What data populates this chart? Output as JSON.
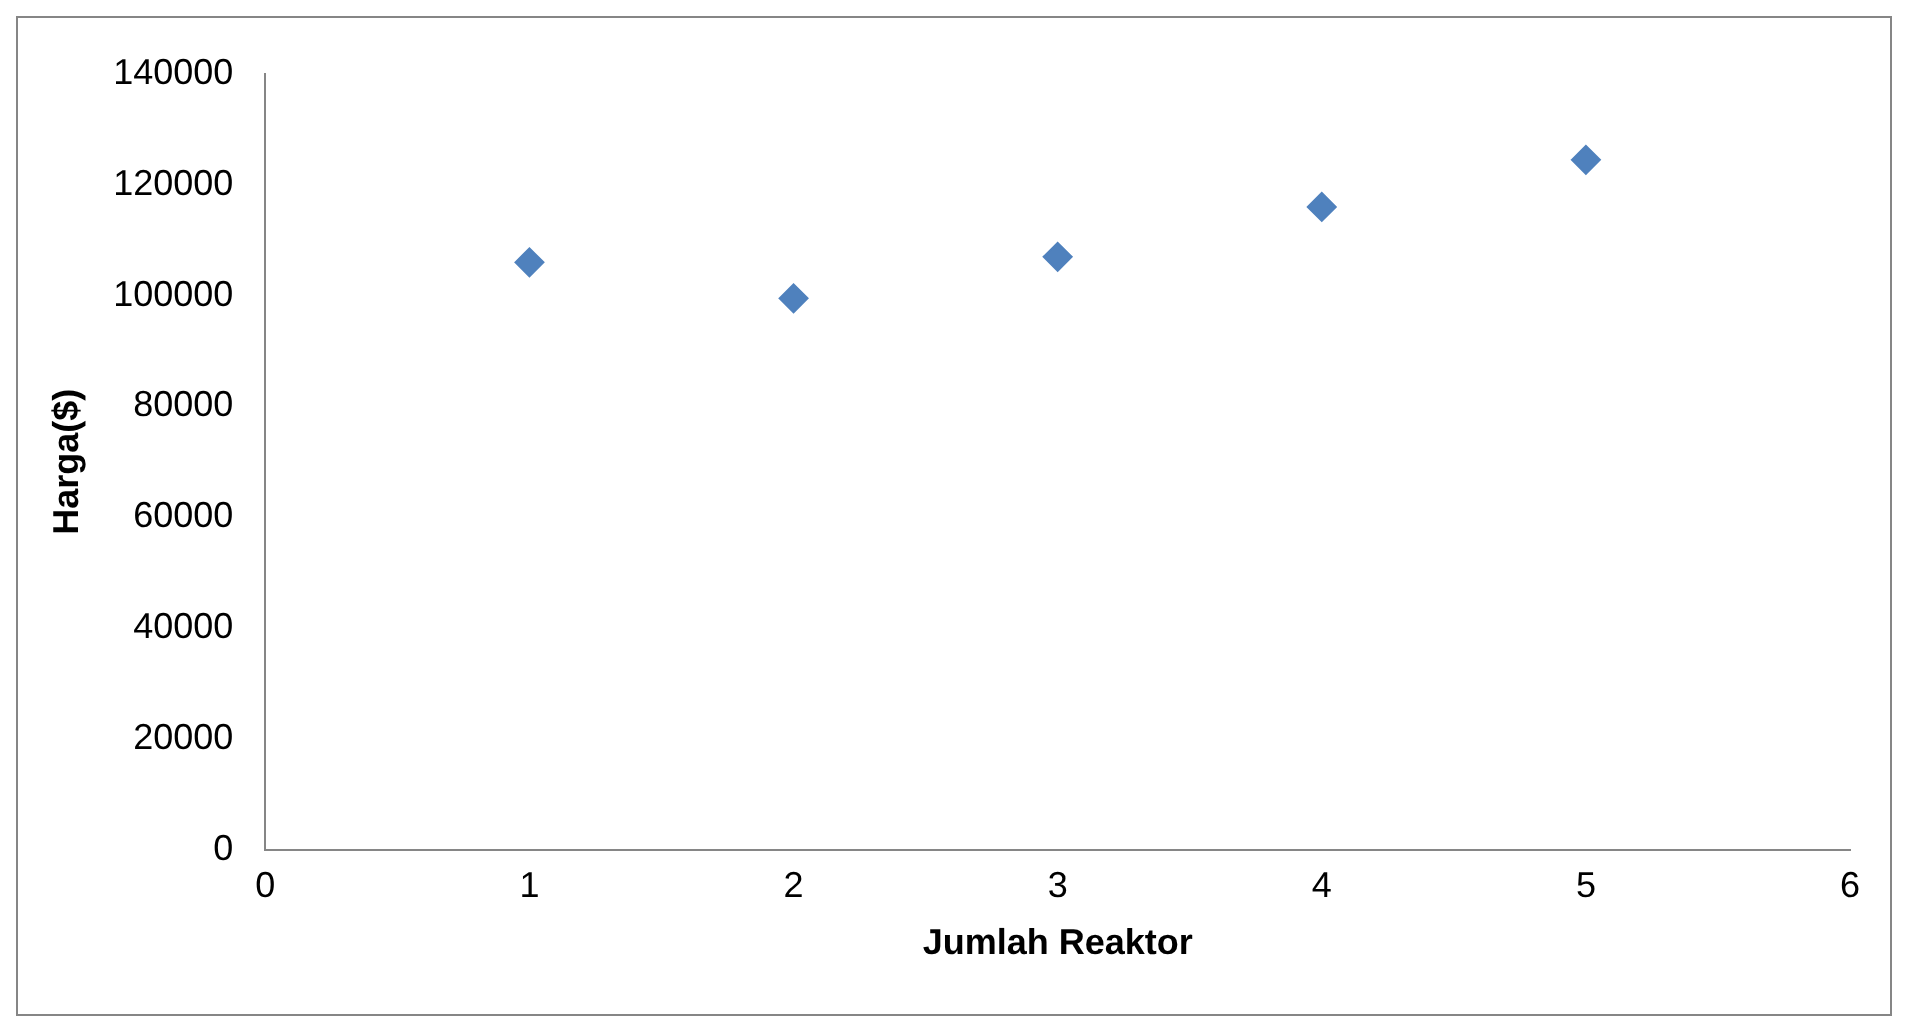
{
  "chart_data": {
    "type": "scatter",
    "xlabel": "Jumlah Reaktor",
    "ylabel": "Harga($)",
    "x": [
      1,
      2,
      3,
      4,
      5
    ],
    "values": [
      106000,
      99500,
      107000,
      116000,
      124500
    ],
    "color": "#4f81bd",
    "marker": "diamond",
    "xlim": [
      0,
      6
    ],
    "xticks": [
      0,
      1,
      2,
      3,
      4,
      5,
      6
    ],
    "ylim": [
      0,
      140000
    ],
    "yticks": [
      0,
      20000,
      40000,
      60000,
      80000,
      100000,
      120000,
      140000
    ],
    "grid": false,
    "legend": false
  }
}
